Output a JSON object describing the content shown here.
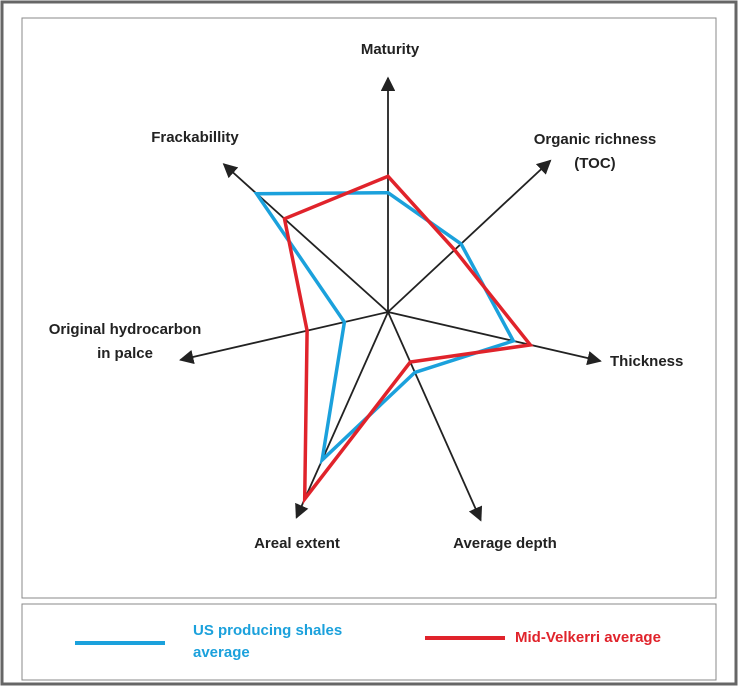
{
  "chart_data": {
    "type": "radar",
    "categories": [
      "Maturity",
      "Organic richness (TOC)",
      "Thickness",
      "Average depth",
      "Areal extent",
      "Original hydrocarbon in palce",
      "Frackabillity"
    ],
    "series": [
      {
        "name": "US producing shales average",
        "color": "#1ba1dc",
        "values": [
          0.51,
          0.45,
          0.59,
          0.29,
          0.72,
          0.21,
          0.8
        ]
      },
      {
        "name": "Mid-Velkerri average",
        "color": "#e0232b",
        "values": [
          0.58,
          0.41,
          0.67,
          0.24,
          0.91,
          0.39,
          0.63
        ]
      }
    ]
  }
}
